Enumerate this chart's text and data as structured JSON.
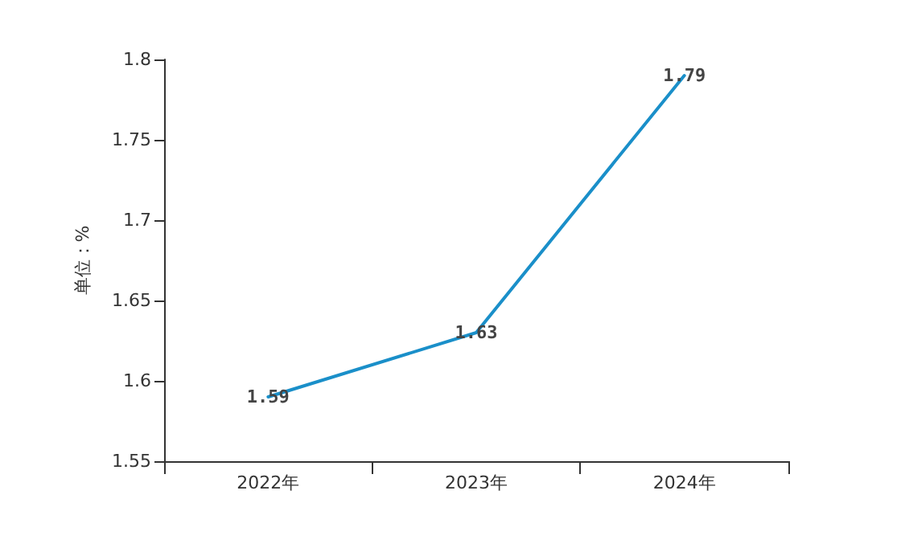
{
  "chart_data": {
    "type": "line",
    "ylabel": "单位：%",
    "categories": [
      "2022年",
      "2023年",
      "2024年"
    ],
    "series": [
      {
        "color": "#1a8fc9",
        "values": [
          1.59,
          1.63,
          1.79
        ]
      }
    ],
    "ylim": [
      1.55,
      1.8
    ],
    "yticks": [
      1.55,
      1.6,
      1.65,
      1.7,
      1.75,
      1.8
    ],
    "data_labels": true,
    "marker": "none",
    "line_style": "solid"
  }
}
